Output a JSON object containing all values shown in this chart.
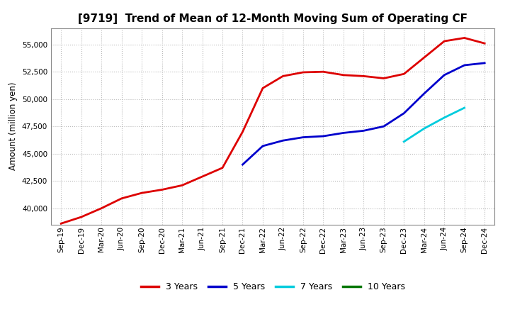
{
  "title": "[9719]  Trend of Mean of 12-Month Moving Sum of Operating CF",
  "ylabel": "Amount (million yen)",
  "background_color": "#ffffff",
  "grid_color": "#bbbbbb",
  "ylim": [
    38500,
    56500
  ],
  "yticks": [
    40000,
    42500,
    45000,
    47500,
    50000,
    52500,
    55000
  ],
  "x_labels": [
    "Sep-19",
    "Dec-19",
    "Mar-20",
    "Jun-20",
    "Sep-20",
    "Dec-20",
    "Mar-21",
    "Jun-21",
    "Sep-21",
    "Dec-21",
    "Mar-22",
    "Jun-22",
    "Sep-22",
    "Dec-22",
    "Mar-23",
    "Jun-23",
    "Sep-23",
    "Dec-23",
    "Mar-24",
    "Jun-24",
    "Sep-24",
    "Dec-24"
  ],
  "series_3y": {
    "label": "3 Years",
    "color": "#dd0000",
    "data_x": [
      0,
      1,
      2,
      3,
      4,
      5,
      6,
      7,
      8,
      9,
      10,
      11,
      12,
      13,
      14,
      15,
      16,
      17,
      18,
      19,
      20,
      21
    ],
    "data_y": [
      38600,
      39200,
      40000,
      40900,
      41400,
      41700,
      42100,
      42900,
      43700,
      47000,
      51000,
      52100,
      52450,
      52500,
      52200,
      52100,
      51900,
      52300,
      53800,
      55300,
      55600,
      55100
    ]
  },
  "series_5y": {
    "label": "5 Years",
    "color": "#0000cc",
    "data_x": [
      9,
      10,
      11,
      12,
      13,
      14,
      15,
      16,
      17,
      18,
      19,
      20,
      21
    ],
    "data_y": [
      44000,
      45700,
      46200,
      46500,
      46600,
      46900,
      47100,
      47500,
      48700,
      50500,
      52200,
      53100,
      53300
    ]
  },
  "series_7y": {
    "label": "7 Years",
    "color": "#00ccdd",
    "data_x": [
      17,
      18,
      19,
      20
    ],
    "data_y": [
      46100,
      47300,
      48300,
      49200
    ]
  },
  "series_10y": {
    "label": "10 Years",
    "color": "#007700",
    "data_x": [],
    "data_y": []
  },
  "legend_fontsize": 9,
  "title_fontsize": 11,
  "tick_fontsize": 7.5,
  "ylabel_fontsize": 8.5,
  "linewidth": 2.0
}
